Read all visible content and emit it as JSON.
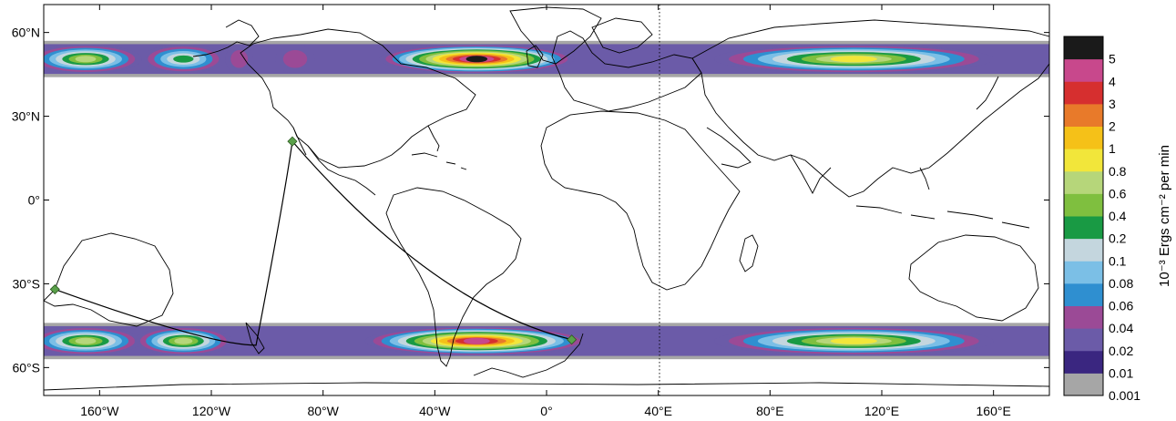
{
  "map": {
    "x_ticks": [
      {
        "lon": -160,
        "label": "160°W"
      },
      {
        "lon": -120,
        "label": "120°W"
      },
      {
        "lon": -80,
        "label": "80°W"
      },
      {
        "lon": -40,
        "label": "40°W"
      },
      {
        "lon": 0,
        "label": "0°"
      },
      {
        "lon": 40,
        "label": "40°E"
      },
      {
        "lon": 80,
        "label": "80°E"
      },
      {
        "lon": 120,
        "label": "120°E"
      },
      {
        "lon": 160,
        "label": "160°E"
      }
    ],
    "y_ticks": [
      {
        "lat": 60,
        "label": "60°N"
      },
      {
        "lat": 30,
        "label": "30°N"
      },
      {
        "lat": 0,
        "label": "0°"
      },
      {
        "lat": -30,
        "label": "30°S"
      },
      {
        "lat": -60,
        "label": "60°S"
      }
    ],
    "lon_range": [
      -180,
      180
    ],
    "lat_range": [
      -70,
      70
    ],
    "dotted_meridian_lon": 40,
    "auroral_bands": [
      {
        "hemisphere": "north",
        "lat_range": [
          44,
          57
        ]
      },
      {
        "hemisphere": "south",
        "lat_range": [
          -57,
          -44
        ]
      }
    ],
    "path_points": [
      {
        "lon": -176,
        "lat": -32
      },
      {
        "lon": -91,
        "lat": 21
      },
      {
        "lon": 9,
        "lat": -50
      }
    ]
  },
  "colorbar": {
    "title": "10⁻³ Ergs cm⁻² per min",
    "levels": [
      {
        "label": "0.001",
        "color": "#a6a6a6"
      },
      {
        "label": "0.01",
        "color": "#3a2680"
      },
      {
        "label": "0.02",
        "color": "#6b5ba8"
      },
      {
        "label": "0.04",
        "color": "#9b4a96"
      },
      {
        "label": "0.06",
        "color": "#2f8fd0"
      },
      {
        "label": "0.08",
        "color": "#7bbfe6"
      },
      {
        "label": "0.1",
        "color": "#c4d6de"
      },
      {
        "label": "0.2",
        "color": "#199a44"
      },
      {
        "label": "0.4",
        "color": "#7fbf3f"
      },
      {
        "label": "0.6",
        "color": "#b6d67a"
      },
      {
        "label": "0.8",
        "color": "#f2e63a"
      },
      {
        "label": "1",
        "color": "#f5c118"
      },
      {
        "label": "2",
        "color": "#e87a2a"
      },
      {
        "label": "3",
        "color": "#d62f2f"
      },
      {
        "label": "4",
        "color": "#c8488c"
      },
      {
        "label": "5",
        "color": "#1a1a1a"
      }
    ]
  }
}
